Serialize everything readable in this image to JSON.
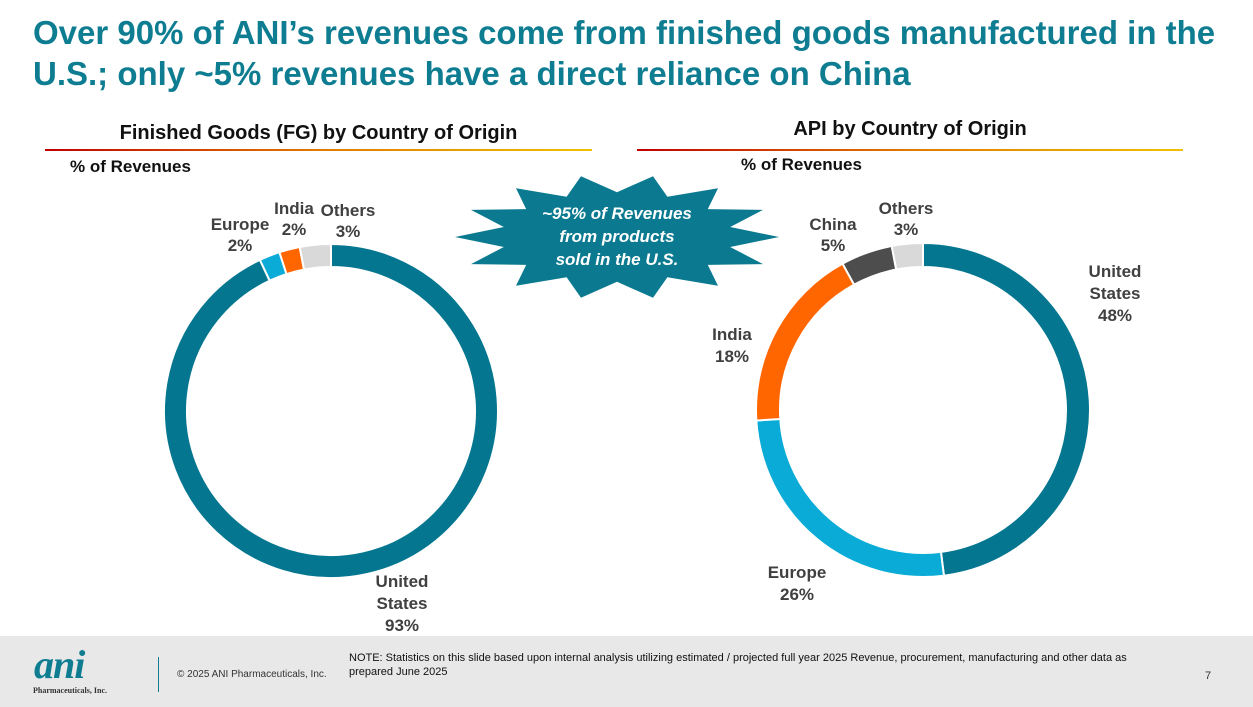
{
  "slide": {
    "title": "Over 90% of ANI’s revenues come from finished goods manufactured in the U.S.; only ~5% revenues have a direct reliance on China",
    "callout": [
      "~95% of Revenues",
      "from products",
      "sold in the U.S."
    ],
    "colors": {
      "teal": "#0f7d91",
      "united_states": "#04768f",
      "europe": "#0aabd6",
      "india": "#ff6600",
      "china": "#4d4d4d",
      "others": "#d9d9d9",
      "burst": "#0b7a90"
    }
  },
  "chart_data": [
    {
      "type": "pie",
      "variant": "donut",
      "title": "Finished Goods (FG) by Country of Origin",
      "subtitle": "% of Revenues",
      "slices": [
        {
          "label": "United States",
          "value": 93,
          "display": "93%",
          "color": "#04768f"
        },
        {
          "label": "Europe",
          "value": 2,
          "display": "2%",
          "color": "#0aabd6"
        },
        {
          "label": "India",
          "value": 2,
          "display": "2%",
          "color": "#ff6600"
        },
        {
          "label": "Others",
          "value": 3,
          "display": "3%",
          "color": "#d9d9d9"
        }
      ]
    },
    {
      "type": "pie",
      "variant": "donut",
      "title": "API by Country of Origin",
      "subtitle": "% of Revenues",
      "slices": [
        {
          "label": "United States",
          "value": 48,
          "display": "48%",
          "color": "#04768f"
        },
        {
          "label": "Europe",
          "value": 26,
          "display": "26%",
          "color": "#0aabd6"
        },
        {
          "label": "India",
          "value": 18,
          "display": "18%",
          "color": "#ff6600"
        },
        {
          "label": "China",
          "value": 5,
          "display": "5%",
          "color": "#4d4d4d"
        },
        {
          "label": "Others",
          "value": 3,
          "display": "3%",
          "color": "#d9d9d9"
        }
      ]
    }
  ],
  "footer": {
    "logo": "ani",
    "logo_sub": "Pharmaceuticals, Inc.",
    "copyright": "© 2025 ANI Pharmaceuticals, Inc.",
    "note": "NOTE: Statistics on this slide based upon internal analysis utilizing estimated / projected full year 2025 Revenue, procurement, manufacturing and other data as prepared June 2025",
    "page_number": "7"
  }
}
